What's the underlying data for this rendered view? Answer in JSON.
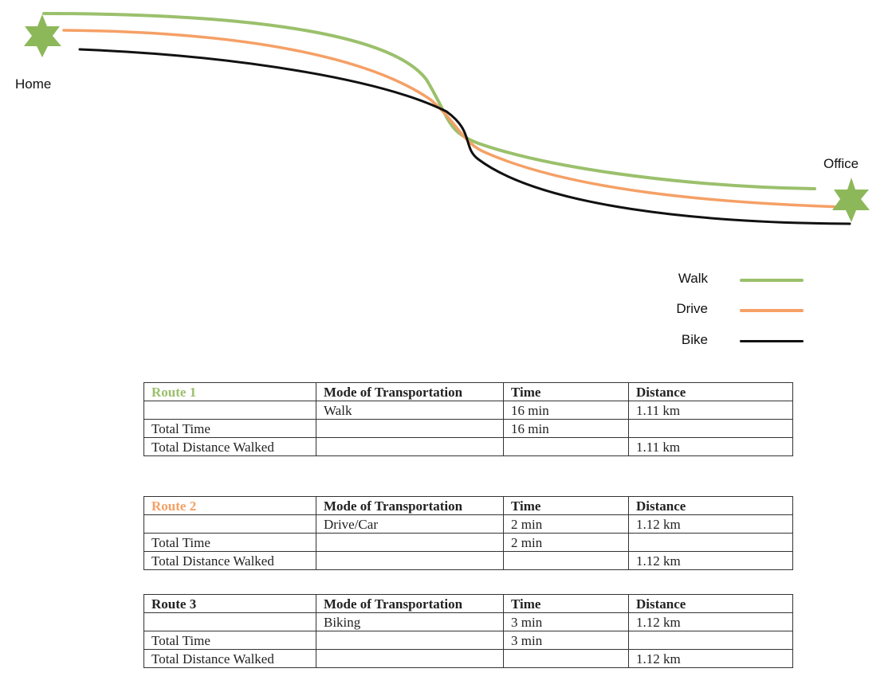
{
  "map": {
    "start_label": "Home",
    "end_label": "Office",
    "start_icon": "star-icon",
    "end_icon": "star-icon",
    "star_color": "#8db85a"
  },
  "legend": {
    "items": [
      {
        "label": "Walk",
        "color": "#9bc06c"
      },
      {
        "label": "Drive",
        "color": "#f5a066"
      },
      {
        "label": "Bike",
        "color": "#111111"
      }
    ]
  },
  "tables": {
    "headers": {
      "mode": "Mode of Transportation",
      "time": "Time",
      "distance": "Distance",
      "total_time": "Total Time",
      "total_distance": "Total Distance Walked"
    },
    "routes": [
      {
        "name": "Route 1",
        "name_color": "#9bc06c",
        "mode": "Walk",
        "time": "16 min",
        "distance": "1.11 km",
        "total_time": "16 min",
        "total_distance": "1.11 km"
      },
      {
        "name": "Route 2",
        "name_color": "#f5a066",
        "mode": "Drive/Car",
        "time": "2 min",
        "distance": "1.12 km",
        "total_time": "2 min",
        "total_distance": "1.12 km"
      },
      {
        "name": "Route 3",
        "name_color": "#222222",
        "mode": "Biking",
        "time": "3 min",
        "distance": "1.12 km",
        "total_time": "3 min",
        "total_distance": "1.12 km"
      }
    ]
  }
}
